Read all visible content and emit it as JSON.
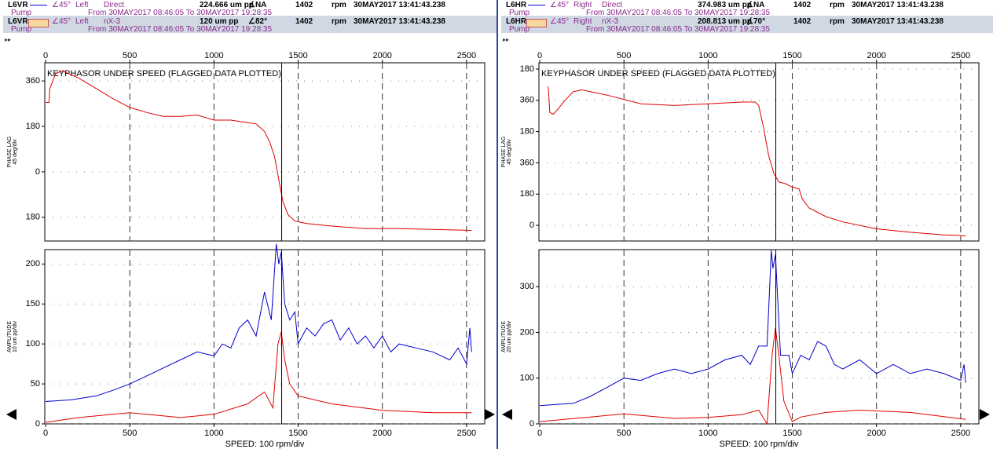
{
  "panels": [
    {
      "rows": [
        [
          "L6VR",
          "∠45°",
          "Left",
          "Direct",
          "224.666 um pp",
          "∠NA",
          "1402",
          "rpm",
          "30MAY2017 13:41:43.238"
        ],
        [
          "Pump",
          "From 30MAY2017 08:46:05 To 30MAY2017 19:28:35"
        ],
        [
          "L6VR",
          "∠45°",
          "Left",
          "nX-3",
          "120 um pp",
          "∠82°",
          "1402",
          "rpm",
          "30MAY2017 13:41:43.238"
        ],
        [
          "Pump",
          "From 30MAY2017 08:46:05 To 30MAY2017 19:28:35"
        ]
      ]
    },
    {
      "rows": [
        [
          "L6HR",
          "∠45°",
          "Right",
          "Direct",
          "374.983 um pp",
          "∠NA",
          "1402",
          "rpm",
          "30MAY2017 13:41:43.238"
        ],
        [
          "Pump",
          "From 30MAY2017 08:46:05 To 30MAY2017 19:28:35"
        ],
        [
          "L6HR",
          "∠45°",
          "Right",
          "nX-3",
          "208.813 um pp",
          "∠70°",
          "1402",
          "rpm",
          "30MAY2017 13:41:43.238"
        ],
        [
          "Pump",
          "From 30MAY2017 08:46:05 To 30MAY2017 19:28:35"
        ]
      ]
    }
  ],
  "chart_data": [
    {
      "type": "line",
      "title": "KEYPHASOR UNDER SPEED (FLAGGED DATA PLOTTED)",
      "ylabel": [
        "PHASE LAG",
        "45 deg/div"
      ],
      "xlim": [
        -5,
        2608
      ],
      "xticks": [
        0,
        500,
        1000,
        1500,
        2000,
        2500
      ],
      "ylim": [
        -274,
        432
      ],
      "yticks": [
        360,
        180,
        0,
        {
          "value": -180,
          "label": "180"
        }
      ],
      "cursor": 1402,
      "grid": "dashed",
      "series": [
        {
          "color": "#e00000",
          "x": [
            0,
            20,
            25,
            60,
            100,
            200,
            300,
            400,
            500,
            600,
            700,
            800,
            900,
            1000,
            1100,
            1200,
            1250,
            1300,
            1330,
            1360,
            1390,
            1410,
            1440,
            1480,
            1550,
            1700,
            1900,
            2100,
            2300,
            2530
          ],
          "values": [
            275,
            275,
            330,
            390,
            400,
            370,
            330,
            290,
            255,
            235,
            220,
            220,
            225,
            205,
            205,
            195,
            190,
            160,
            120,
            60,
            -50,
            -120,
            -170,
            -195,
            -205,
            -215,
            -225,
            -225,
            -228,
            -232
          ]
        }
      ]
    },
    {
      "type": "line",
      "ylabel": [
        "AMPLITUDE",
        "10 um pp/div"
      ],
      "xlabel": "SPEED: 100 rpm/div",
      "xlim": [
        -5,
        2608
      ],
      "xticks": [
        0,
        500,
        1000,
        1500,
        2000,
        2500
      ],
      "ylim": [
        0,
        218
      ],
      "yticks": [
        0,
        50,
        100,
        150,
        200
      ],
      "cursor": 1402,
      "grid": "dashed",
      "series": [
        {
          "color": "#0000cc",
          "x": [
            0,
            150,
            300,
            400,
            500,
            600,
            700,
            800,
            900,
            1000,
            1050,
            1100,
            1150,
            1200,
            1250,
            1300,
            1340,
            1370,
            1385,
            1400,
            1420,
            1450,
            1480,
            1500,
            1550,
            1600,
            1650,
            1700,
            1750,
            1800,
            1850,
            1900,
            1950,
            2000,
            2050,
            2100,
            2200,
            2300,
            2400,
            2450,
            2500,
            2520,
            2530
          ],
          "values": [
            28,
            30,
            35,
            42,
            50,
            60,
            70,
            80,
            90,
            85,
            100,
            95,
            120,
            130,
            110,
            165,
            130,
            225,
            200,
            215,
            150,
            130,
            140,
            100,
            120,
            110,
            125,
            130,
            105,
            120,
            100,
            110,
            95,
            110,
            90,
            100,
            95,
            90,
            80,
            95,
            75,
            120,
            90
          ]
        },
        {
          "color": "#e00000",
          "x": [
            0,
            200,
            500,
            800,
            1000,
            1200,
            1300,
            1350,
            1380,
            1400,
            1420,
            1450,
            1500,
            1700,
            2000,
            2300,
            2530
          ],
          "values": [
            2,
            8,
            14,
            8,
            12,
            25,
            40,
            20,
            100,
            115,
            80,
            50,
            35,
            25,
            17,
            14,
            14
          ]
        }
      ]
    },
    {
      "type": "line",
      "title": "KEYPHASOR UNDER SPEED (FLAGGED DATA PLOTTED)",
      "ylabel": [
        "PHASE LAG",
        "45 deg/div"
      ],
      "xlim": [
        -5,
        2608
      ],
      "xticks": [
        0,
        500,
        1000,
        1500,
        2000,
        2500
      ],
      "ylim": [
        -90,
        936
      ],
      "yticks": [
        {
          "value": 900,
          "label": "180"
        },
        {
          "value": 720,
          "label": "360"
        },
        {
          "value": 540,
          "label": "180"
        },
        360,
        180,
        0
      ],
      "cursor": 1402,
      "grid": "dashed",
      "series": [
        {
          "color": "#e00000",
          "x": [
            50,
            60,
            80,
            100,
            150,
            200,
            250,
            400,
            600,
            800,
            1000,
            1200,
            1280,
            1300,
            1330,
            1360,
            1390,
            1420,
            1460,
            1500,
            1540,
            1560,
            1600,
            1700,
            1800,
            2000,
            2200,
            2400,
            2530
          ],
          "values": [
            800,
            650,
            640,
            660,
            720,
            770,
            780,
            750,
            700,
            690,
            700,
            710,
            710,
            690,
            560,
            400,
            300,
            250,
            240,
            220,
            210,
            150,
            100,
            50,
            20,
            -20,
            -40,
            -55,
            -60
          ]
        }
      ]
    },
    {
      "type": "line",
      "ylabel": [
        "AMPLITUDE",
        "20 um pp/div"
      ],
      "xlabel": "SPEED: 100 rpm/div",
      "xlim": [
        -5,
        2608
      ],
      "xticks": [
        0,
        500,
        1000,
        1500,
        2000,
        2500
      ],
      "ylim": [
        0,
        381
      ],
      "yticks": [
        0,
        100,
        200,
        300
      ],
      "cursor": 1402,
      "grid": "dashed",
      "series": [
        {
          "color": "#0000cc",
          "x": [
            0,
            200,
            300,
            400,
            500,
            600,
            700,
            800,
            900,
            1000,
            1100,
            1200,
            1250,
            1300,
            1350,
            1375,
            1385,
            1400,
            1430,
            1480,
            1500,
            1550,
            1600,
            1650,
            1700,
            1750,
            1800,
            1900,
            2000,
            2100,
            2200,
            2300,
            2400,
            2500,
            2520,
            2530
          ],
          "values": [
            40,
            45,
            60,
            80,
            100,
            95,
            110,
            120,
            110,
            120,
            140,
            150,
            130,
            170,
            170,
            380,
            340,
            370,
            150,
            150,
            110,
            150,
            140,
            180,
            170,
            130,
            120,
            140,
            110,
            130,
            110,
            120,
            110,
            95,
            130,
            90
          ]
        },
        {
          "color": "#e00000",
          "x": [
            0,
            300,
            500,
            800,
            1000,
            1200,
            1300,
            1350,
            1380,
            1400,
            1420,
            1450,
            1500,
            1550,
            1700,
            1900,
            2200,
            2530
          ],
          "values": [
            5,
            15,
            22,
            12,
            14,
            20,
            30,
            0,
            150,
            210,
            150,
            50,
            5,
            15,
            25,
            30,
            25,
            10
          ]
        }
      ]
    }
  ]
}
